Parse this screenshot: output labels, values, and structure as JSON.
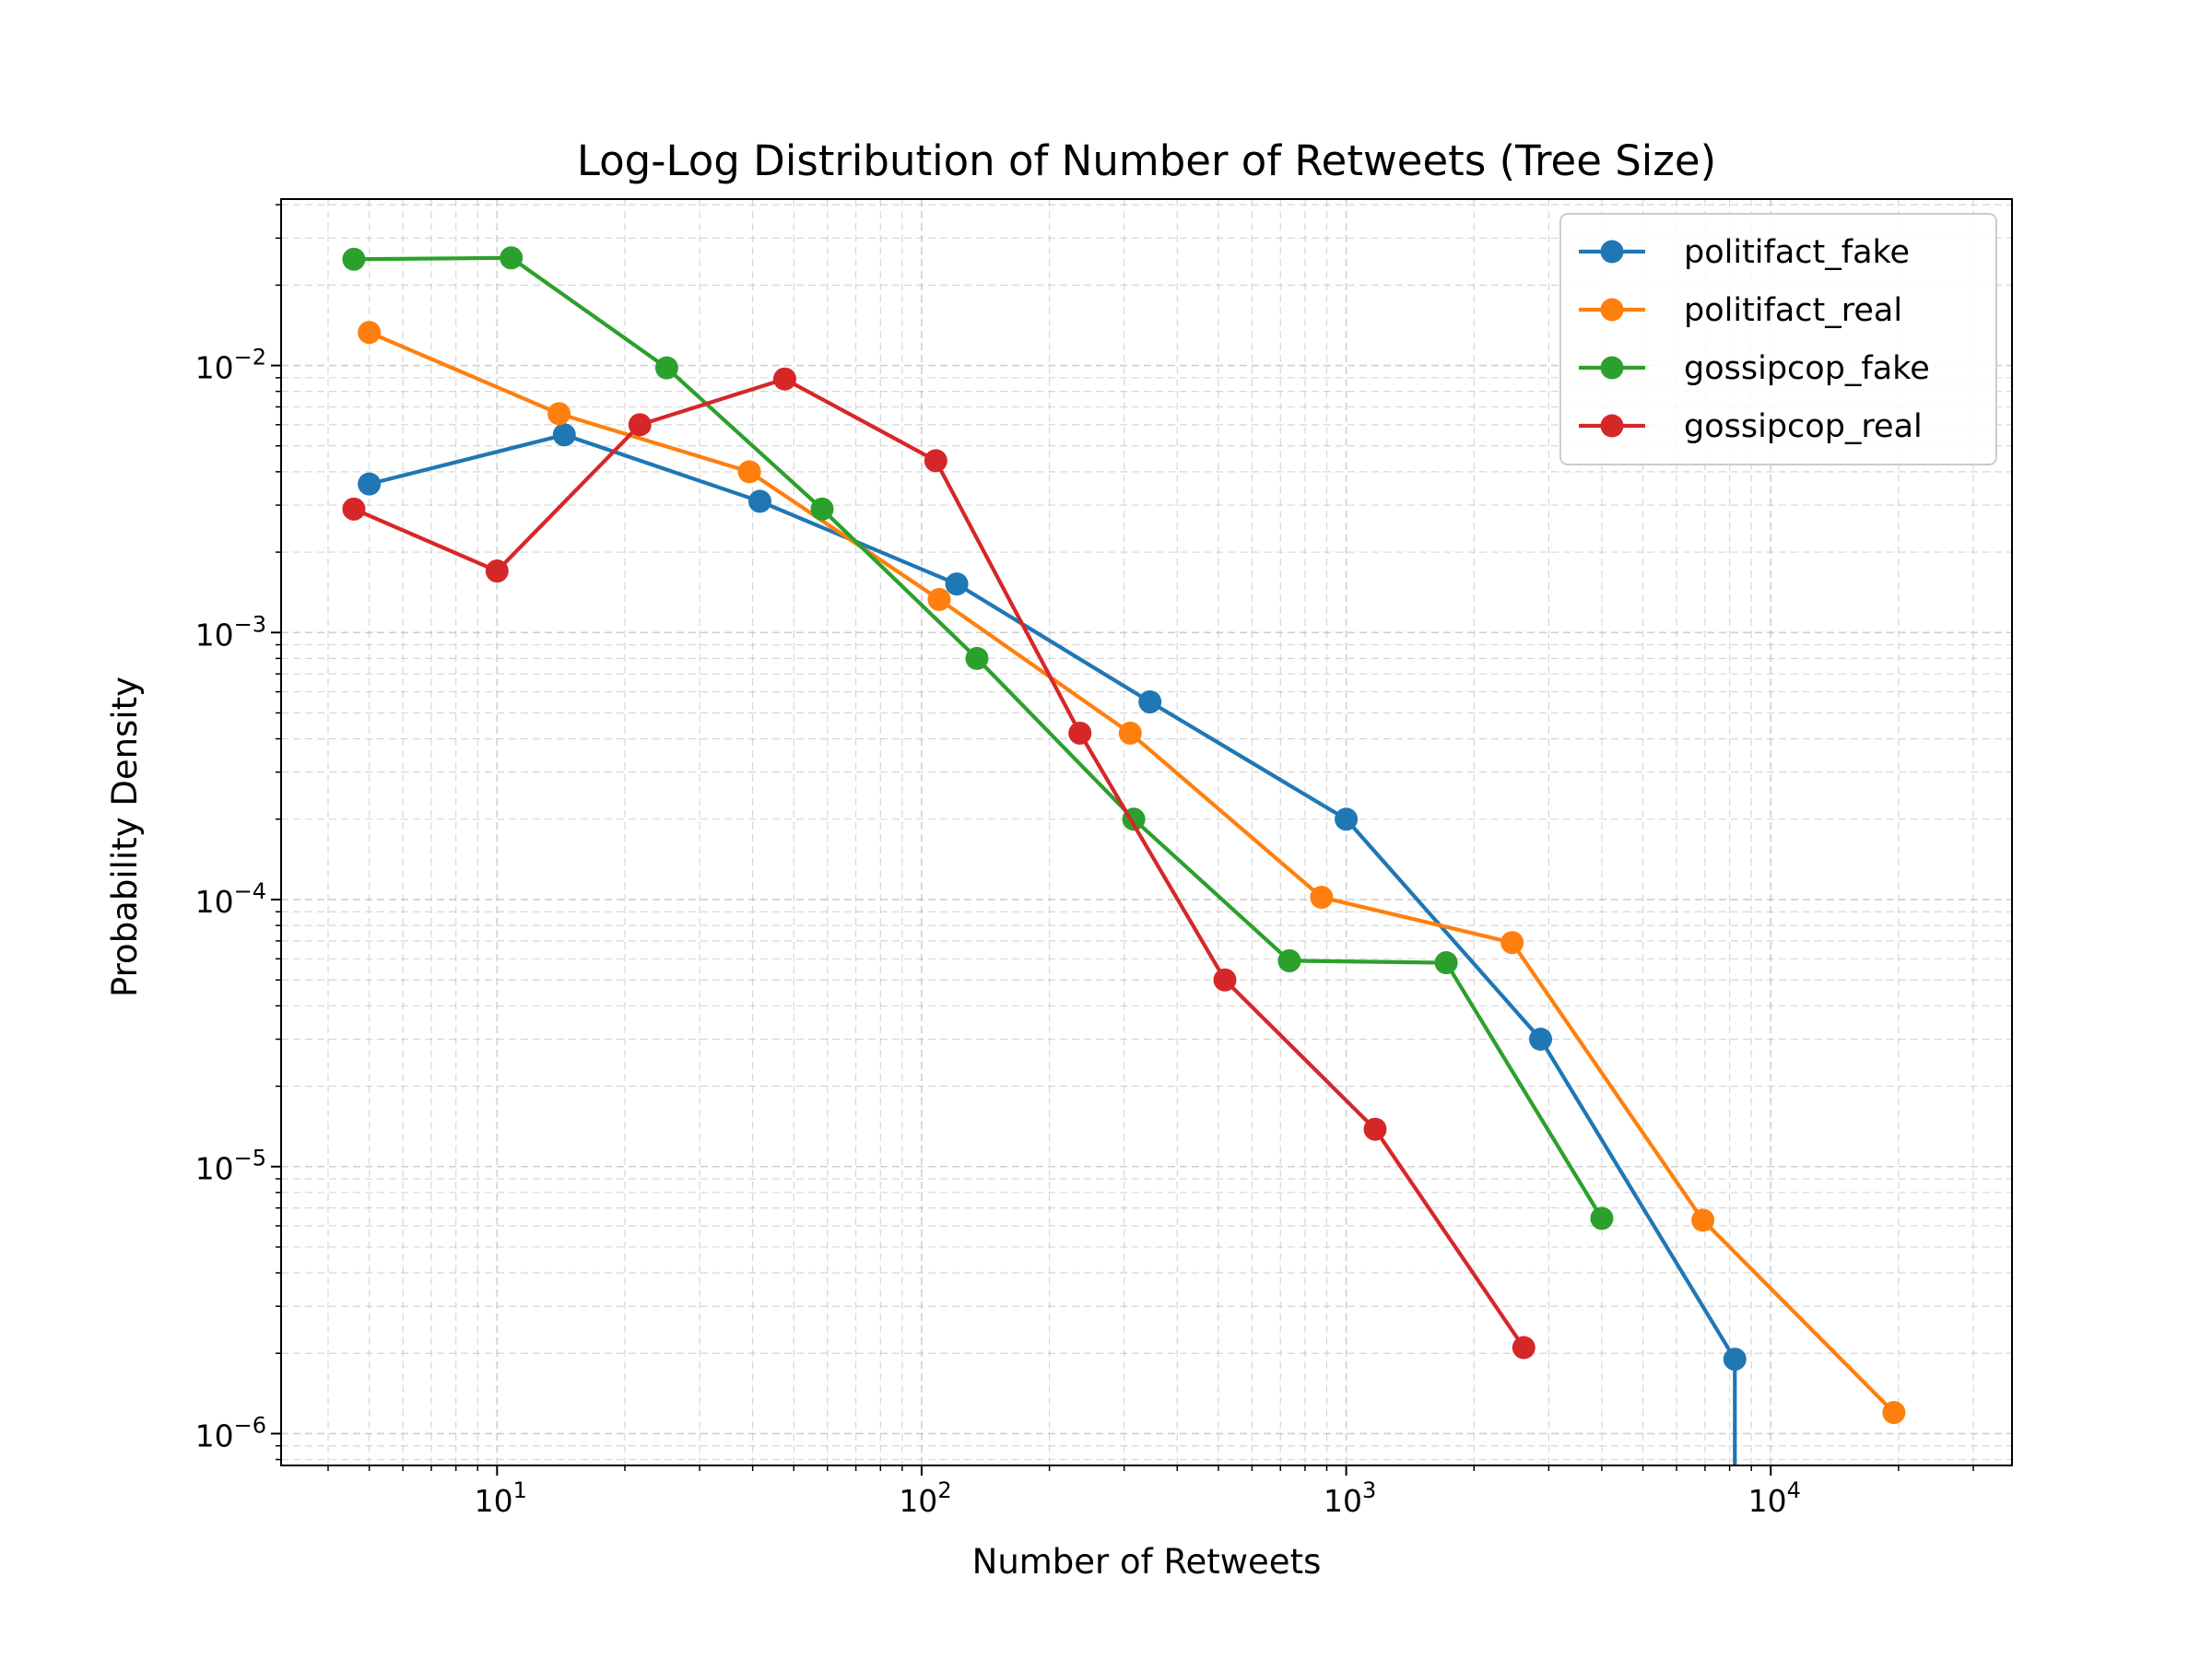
{
  "chart_data": {
    "type": "line",
    "title": "Log-Log Distribution of Number of Retweets (Tree Size)",
    "xlabel": "Number of Retweets",
    "ylabel": "Probability Density",
    "xscale": "log",
    "yscale": "log",
    "xlim": [
      3.1,
      37000
    ],
    "ylim": [
      7.6e-07,
      0.042
    ],
    "x_ticks": [
      {
        "base": "10",
        "exp": "1",
        "value": 10
      },
      {
        "base": "10",
        "exp": "2",
        "value": 100
      },
      {
        "base": "10",
        "exp": "3",
        "value": 1000
      },
      {
        "base": "10",
        "exp": "4",
        "value": 10000
      }
    ],
    "y_ticks": [
      {
        "base": "10",
        "exp": "−2",
        "value": 0.01
      },
      {
        "base": "10",
        "exp": "−3",
        "value": 0.001
      },
      {
        "base": "10",
        "exp": "−4",
        "value": 0.0001
      },
      {
        "base": "10",
        "exp": "−5",
        "value": 1e-05
      },
      {
        "base": "10",
        "exp": "−6",
        "value": 1e-06
      }
    ],
    "grid": "both, dashed",
    "legend_position": "top-right",
    "series": [
      {
        "name": "politifact_fake",
        "color": "#1f77b4",
        "x": [
          5.0,
          14.4,
          41.6,
          121,
          345,
          1000,
          2870,
          8230
        ],
        "y": [
          0.0036,
          0.0055,
          0.0031,
          0.00152,
          0.00055,
          0.0002,
          3e-05,
          1.9e-06
        ],
        "tail_to_axis": true
      },
      {
        "name": "politifact_real",
        "color": "#ff7f0e",
        "x": [
          5.0,
          14.0,
          39.3,
          110,
          310,
          875,
          2460,
          6920,
          19500
        ],
        "y": [
          0.0133,
          0.0066,
          0.004,
          0.00133,
          0.00042,
          0.000102,
          6.9e-05,
          6.3e-06,
          1.2e-06
        ]
      },
      {
        "name": "gossipcop_fake",
        "color": "#2ca02c",
        "x": [
          4.6,
          10.8,
          25.1,
          58.3,
          135,
          316,
          735,
          1720,
          4000
        ],
        "y": [
          0.025,
          0.0253,
          0.0098,
          0.0029,
          0.0008,
          0.0002,
          5.9e-05,
          5.8e-05,
          6.4e-06
        ]
      },
      {
        "name": "gossipcop_real",
        "color": "#d62728",
        "x": [
          4.6,
          10.0,
          21.7,
          47.6,
          108,
          236,
          518,
          1170,
          2620
        ],
        "y": [
          0.0029,
          0.0017,
          0.006,
          0.0089,
          0.0044,
          0.00042,
          5e-05,
          1.38e-05,
          2.1e-06
        ]
      }
    ]
  }
}
